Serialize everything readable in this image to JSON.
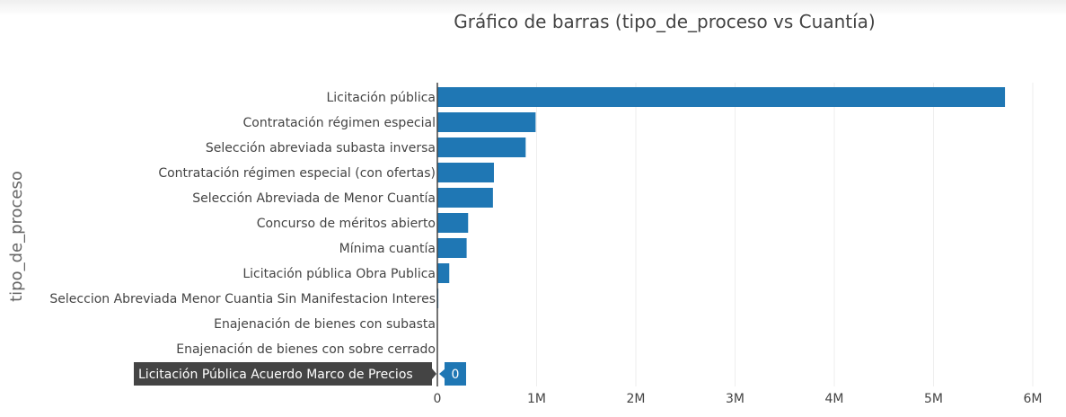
{
  "chart_data": {
    "type": "bar",
    "orientation": "horizontal",
    "title": "Gráfico de barras (tipo_de_proceso vs Cuantía)",
    "xlabel": "",
    "ylabel": "tipo_de_proceso",
    "xlim": [
      0,
      6000000
    ],
    "x_tick_values": [
      0,
      1000000,
      2000000,
      3000000,
      4000000,
      5000000,
      6000000
    ],
    "x_tick_labels": [
      "0",
      "1M",
      "2M",
      "3M",
      "4M",
      "5M",
      "6M"
    ],
    "grid": "vertical",
    "bar_color": "#1f77b4",
    "categories": [
      "Licitación pública",
      "Contratación régimen especial",
      "Selección abreviada subasta inversa",
      "Contratación régimen especial (con ofertas)",
      "Selección Abreviada de Menor Cuantía",
      "Concurso de méritos abierto",
      "Mínima cuantía",
      "Licitación pública Obra Publica",
      "Seleccion Abreviada Menor Cuantia Sin Manifestacion Interes",
      "Enajenación de bienes con subasta",
      "Enajenación de bienes con sobre cerrado",
      ""
    ],
    "values": [
      5720000,
      990000,
      890000,
      570000,
      560000,
      310000,
      295000,
      120000,
      10000,
      3000,
      2000,
      0
    ],
    "hover": {
      "category": "Licitación Pública Acuerdo Marco de Precios",
      "value_label": "0"
    }
  },
  "colors": {
    "bar": "#1f77b4",
    "grid": "#eeeeee",
    "axis_text": "#444444",
    "ylabel_text": "#666666",
    "hover_label_bg": "#444444",
    "hover_value_bg": "#1f77b4"
  }
}
